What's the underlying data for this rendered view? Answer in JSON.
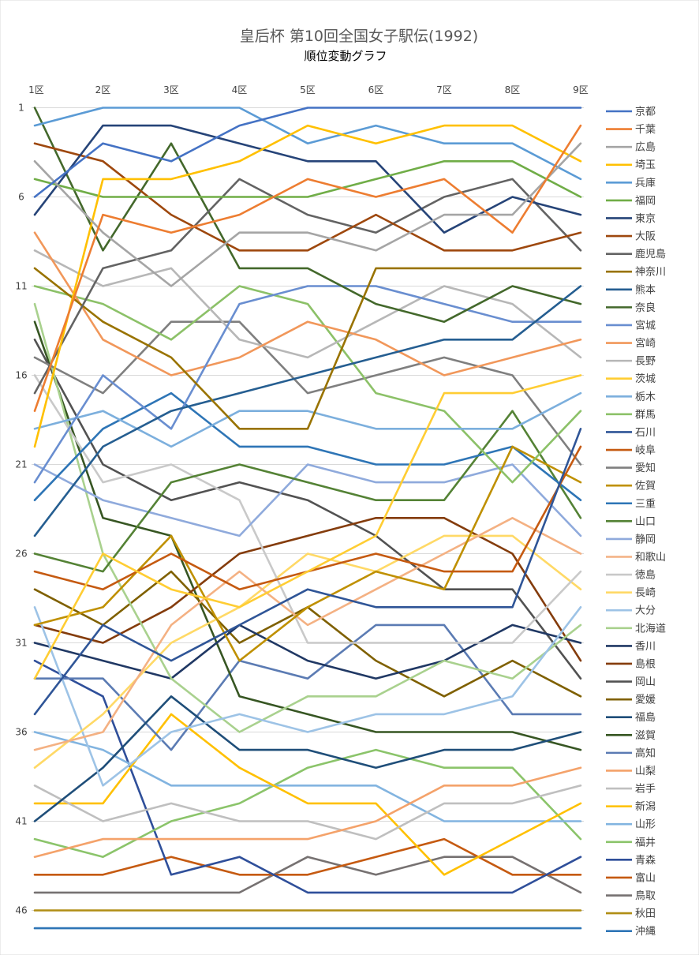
{
  "chart_data": {
    "type": "line",
    "title": "皇后杯 第10回全国女子駅伝(1992)",
    "subtitle": "順位変動グラフ",
    "categories": [
      "1区",
      "2区",
      "3区",
      "4区",
      "5区",
      "6区",
      "7区",
      "8区",
      "9区"
    ],
    "ylim": [
      1,
      47
    ],
    "y_inverted": true,
    "y_ticks": [
      1,
      6,
      11,
      16,
      21,
      26,
      31,
      36,
      41,
      46
    ],
    "grid": true,
    "legend_position": "right",
    "series": [
      {
        "name": "京都",
        "color": "#4472C4",
        "values": [
          6,
          3,
          4,
          2,
          1,
          1,
          1,
          1,
          1
        ]
      },
      {
        "name": "千葉",
        "color": "#ED7D31",
        "values": [
          18,
          7,
          8,
          7,
          5,
          6,
          5,
          8,
          2
        ]
      },
      {
        "name": "広島",
        "color": "#A5A5A5",
        "values": [
          4,
          8,
          11,
          8,
          8,
          9,
          7,
          7,
          3
        ]
      },
      {
        "name": "埼玉",
        "color": "#FFC000",
        "values": [
          20,
          5,
          5,
          4,
          2,
          3,
          2,
          2,
          4
        ]
      },
      {
        "name": "兵庫",
        "color": "#5B9BD5",
        "values": [
          2,
          1,
          1,
          1,
          3,
          2,
          3,
          3,
          5
        ]
      },
      {
        "name": "福岡",
        "color": "#70AD47",
        "values": [
          5,
          6,
          6,
          6,
          6,
          5,
          4,
          4,
          6
        ]
      },
      {
        "name": "東京",
        "color": "#264478",
        "values": [
          7,
          2,
          2,
          3,
          4,
          4,
          8,
          6,
          7
        ]
      },
      {
        "name": "大阪",
        "color": "#9E480E",
        "values": [
          3,
          4,
          7,
          9,
          9,
          7,
          9,
          9,
          8
        ]
      },
      {
        "name": "鹿児島",
        "color": "#636363",
        "values": [
          17,
          10,
          9,
          5,
          7,
          8,
          6,
          5,
          9
        ]
      },
      {
        "name": "神奈川",
        "color": "#997300",
        "values": [
          10,
          13,
          15,
          19,
          19,
          10,
          10,
          10,
          10
        ]
      },
      {
        "name": "熊本",
        "color": "#255E91",
        "values": [
          25,
          20,
          18,
          17,
          16,
          15,
          14,
          14,
          11
        ]
      },
      {
        "name": "奈良",
        "color": "#43682B",
        "values": [
          1,
          9,
          3,
          10,
          10,
          12,
          13,
          11,
          12
        ]
      },
      {
        "name": "宮城",
        "color": "#698ED0",
        "values": [
          22,
          16,
          19,
          12,
          11,
          11,
          12,
          13,
          13
        ]
      },
      {
        "name": "宮崎",
        "color": "#F1975A",
        "values": [
          8,
          14,
          16,
          15,
          13,
          14,
          16,
          15,
          14
        ]
      },
      {
        "name": "長野",
        "color": "#B7B7B7",
        "values": [
          9,
          11,
          10,
          14,
          15,
          13,
          11,
          12,
          15
        ]
      },
      {
        "name": "茨城",
        "color": "#FFCD33",
        "values": [
          33,
          26,
          28,
          29,
          27,
          25,
          17,
          17,
          16
        ]
      },
      {
        "name": "栃木",
        "color": "#7CAFDD",
        "values": [
          19,
          18,
          20,
          18,
          18,
          19,
          19,
          19,
          17
        ]
      },
      {
        "name": "群馬",
        "color": "#8CC168",
        "values": [
          11,
          12,
          14,
          11,
          12,
          17,
          18,
          22,
          18
        ]
      },
      {
        "name": "石川",
        "color": "#2F5597",
        "values": [
          35,
          30,
          32,
          30,
          28,
          29,
          29,
          29,
          19
        ]
      },
      {
        "name": "岐阜",
        "color": "#C55A11",
        "values": [
          27,
          28,
          26,
          28,
          27,
          26,
          27,
          27,
          20
        ]
      },
      {
        "name": "愛知",
        "color": "#7F7F7F",
        "values": [
          15,
          17,
          13,
          13,
          17,
          16,
          15,
          16,
          21
        ]
      },
      {
        "name": "佐賀",
        "color": "#BF9000",
        "values": [
          30,
          29,
          25,
          32,
          29,
          27,
          28,
          20,
          22
        ]
      },
      {
        "name": "三重",
        "color": "#2E75B6",
        "values": [
          23,
          19,
          17,
          20,
          20,
          21,
          21,
          20,
          23
        ]
      },
      {
        "name": "山口",
        "color": "#548235",
        "values": [
          26,
          27,
          22,
          21,
          22,
          23,
          23,
          18,
          24
        ]
      },
      {
        "name": "静岡",
        "color": "#8FAADC",
        "values": [
          21,
          23,
          24,
          25,
          21,
          22,
          22,
          21,
          25
        ]
      },
      {
        "name": "和歌山",
        "color": "#F4B183",
        "values": [
          37,
          36,
          30,
          27,
          30,
          28,
          26,
          24,
          26
        ]
      },
      {
        "name": "徳島",
        "color": "#C9C9C9",
        "values": [
          16,
          22,
          21,
          23,
          31,
          31,
          31,
          31,
          27
        ]
      },
      {
        "name": "長崎",
        "color": "#FFD966",
        "values": [
          38,
          35,
          31,
          29,
          26,
          27,
          25,
          25,
          28
        ]
      },
      {
        "name": "大分",
        "color": "#9DC3E6",
        "values": [
          29,
          39,
          36,
          35,
          36,
          35,
          35,
          34,
          29
        ]
      },
      {
        "name": "北海道",
        "color": "#A9D18E",
        "values": [
          12,
          26,
          33,
          36,
          34,
          34,
          32,
          33,
          30
        ]
      },
      {
        "name": "香川",
        "color": "#203864",
        "values": [
          31,
          32,
          33,
          30,
          32,
          33,
          32,
          30,
          31
        ]
      },
      {
        "name": "島根",
        "color": "#843C0C",
        "values": [
          30,
          31,
          29,
          26,
          25,
          24,
          24,
          26,
          32
        ]
      },
      {
        "name": "岡山",
        "color": "#525252",
        "values": [
          14,
          21,
          23,
          22,
          23,
          25,
          28,
          28,
          33
        ]
      },
      {
        "name": "愛媛",
        "color": "#7F6000",
        "values": [
          28,
          30,
          27,
          31,
          29,
          32,
          34,
          32,
          34
        ]
      },
      {
        "name": "福島",
        "color": "#1F4E79",
        "values": [
          41,
          38,
          34,
          37,
          37,
          38,
          37,
          37,
          36
        ]
      },
      {
        "name": "滋賀",
        "color": "#375623",
        "values": [
          13,
          24,
          25,
          34,
          35,
          36,
          36,
          36,
          37
        ]
      },
      {
        "name": "高知",
        "color": "#5B7BB3",
        "values": [
          33,
          33,
          37,
          32,
          33,
          30,
          30,
          35,
          35
        ]
      },
      {
        "name": "山梨",
        "color": "#F4A26A",
        "values": [
          43,
          42,
          42,
          42,
          42,
          41,
          39,
          39,
          38
        ]
      },
      {
        "name": "岩手",
        "color": "#BFBFBF",
        "values": [
          39,
          41,
          40,
          41,
          41,
          42,
          40,
          40,
          39
        ]
      },
      {
        "name": "新潟",
        "color": "#FFC000",
        "values": [
          40,
          40,
          35,
          38,
          40,
          40,
          44,
          42,
          40
        ]
      },
      {
        "name": "山形",
        "color": "#82B4E0",
        "values": [
          36,
          37,
          39,
          39,
          39,
          39,
          41,
          41,
          41
        ]
      },
      {
        "name": "福井",
        "color": "#8BC46A",
        "values": [
          42,
          43,
          41,
          40,
          38,
          37,
          38,
          38,
          42
        ]
      },
      {
        "name": "青森",
        "color": "#2F4F9A",
        "values": [
          32,
          34,
          44,
          43,
          45,
          45,
          45,
          45,
          43
        ]
      },
      {
        "name": "富山",
        "color": "#C55A11",
        "values": [
          44,
          44,
          43,
          44,
          44,
          43,
          42,
          44,
          44
        ]
      },
      {
        "name": "鳥取",
        "color": "#767171",
        "values": [
          45,
          45,
          45,
          45,
          43,
          44,
          43,
          43,
          45
        ]
      },
      {
        "name": "秋田",
        "color": "#B08E14",
        "values": [
          46,
          46,
          46,
          46,
          46,
          46,
          46,
          46,
          46
        ]
      },
      {
        "name": "沖縄",
        "color": "#2E75B6",
        "values": [
          47,
          47,
          47,
          47,
          47,
          47,
          47,
          47,
          47
        ]
      }
    ]
  }
}
